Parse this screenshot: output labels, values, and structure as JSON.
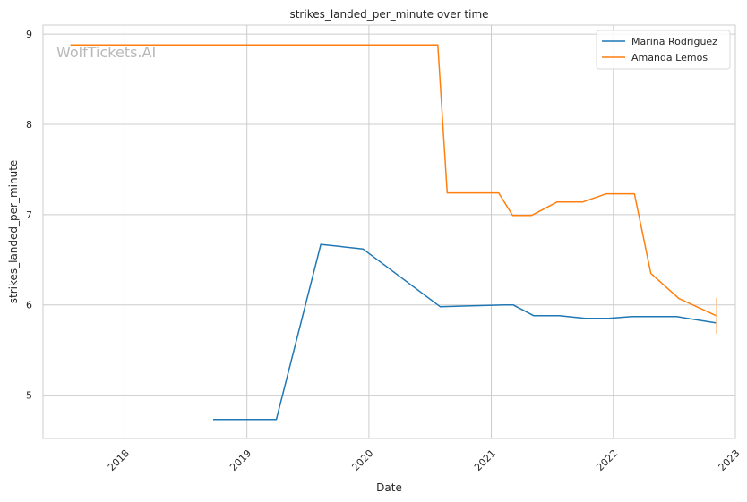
{
  "chart_data": {
    "type": "line",
    "title": "strikes_landed_per_minute over time",
    "xlabel": "Date",
    "ylabel": "strikes_landed_per_minute",
    "watermark": "WolfTickets.AI",
    "xlim": [
      "2017-05-01",
      "2023-01-01"
    ],
    "ylim": [
      4.52,
      9.1
    ],
    "x_ticks": [
      {
        "date": "2018-01-01",
        "label": "2018"
      },
      {
        "date": "2019-01-01",
        "label": "2019"
      },
      {
        "date": "2020-01-01",
        "label": "2020"
      },
      {
        "date": "2021-01-01",
        "label": "2021"
      },
      {
        "date": "2022-01-01",
        "label": "2022"
      },
      {
        "date": "2023-01-01",
        "label": "2023"
      }
    ],
    "y_ticks": [
      {
        "value": 5,
        "label": "5"
      },
      {
        "value": 6,
        "label": "6"
      },
      {
        "value": 7,
        "label": "7"
      },
      {
        "value": 8,
        "label": "8"
      },
      {
        "value": 9,
        "label": "9"
      }
    ],
    "grid": true,
    "legend_position": "top-right",
    "series": [
      {
        "name": "Marina Rodriguez",
        "color": "#1f77b4",
        "points": [
          {
            "x": "2018-09-22",
            "y": 4.73
          },
          {
            "x": "2019-03-30",
            "y": 4.73
          },
          {
            "x": "2019-08-10",
            "y": 6.67
          },
          {
            "x": "2019-12-14",
            "y": 6.62
          },
          {
            "x": "2020-08-01",
            "y": 5.98
          },
          {
            "x": "2021-02-10",
            "y": 6.0
          },
          {
            "x": "2021-03-07",
            "y": 6.0
          },
          {
            "x": "2021-05-08",
            "y": 5.88
          },
          {
            "x": "2021-07-24",
            "y": 5.88
          },
          {
            "x": "2021-10-09",
            "y": 5.85
          },
          {
            "x": "2021-12-18",
            "y": 5.85
          },
          {
            "x": "2022-02-26",
            "y": 5.87
          },
          {
            "x": "2022-07-09",
            "y": 5.87
          },
          {
            "x": "2022-11-05",
            "y": 5.8
          }
        ]
      },
      {
        "name": "Amanda Lemos",
        "color": "#ff7f0e",
        "points": [
          {
            "x": "2017-07-22",
            "y": 8.88
          },
          {
            "x": "2020-07-25",
            "y": 8.88
          },
          {
            "x": "2020-08-22",
            "y": 7.24
          },
          {
            "x": "2021-01-23",
            "y": 7.24
          },
          {
            "x": "2021-03-06",
            "y": 6.99
          },
          {
            "x": "2021-05-01",
            "y": 6.99
          },
          {
            "x": "2021-07-17",
            "y": 7.14
          },
          {
            "x": "2021-10-02",
            "y": 7.14
          },
          {
            "x": "2021-12-11",
            "y": 7.23
          },
          {
            "x": "2022-03-05",
            "y": 7.23
          },
          {
            "x": "2022-04-23",
            "y": 6.35
          },
          {
            "x": "2022-07-16",
            "y": 6.07
          },
          {
            "x": "2022-11-05",
            "y": 5.88
          }
        ]
      }
    ]
  }
}
